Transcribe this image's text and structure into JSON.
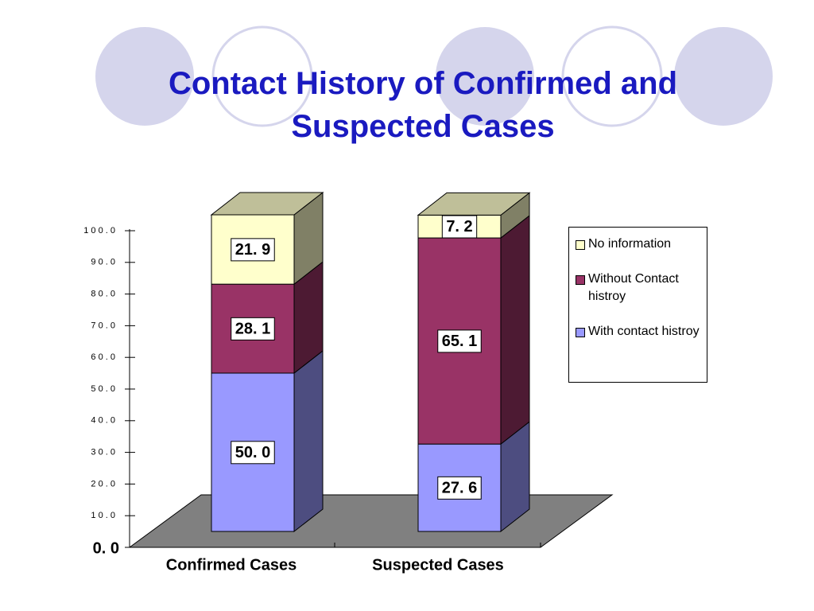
{
  "chart_data": {
    "type": "stacked-bar-3d",
    "title": "Contact History of Confirmed and Suspected Cases",
    "categories": [
      "Confirmed Cases",
      "Suspected Cases"
    ],
    "series": [
      {
        "name": "With contact histroy",
        "color": "#9999ff",
        "values": [
          50.0,
          27.6
        ],
        "value_labels": [
          "50. 0",
          "27. 6"
        ]
      },
      {
        "name": "Without Contact histroy",
        "color": "#993366",
        "values": [
          28.1,
          65.1
        ],
        "value_labels": [
          "28. 1",
          "65. 1"
        ]
      },
      {
        "name": "No information",
        "color": "#ffffcc",
        "values": [
          21.9,
          7.2
        ],
        "value_labels": [
          "21. 9",
          "7. 2"
        ]
      }
    ],
    "ylim": [
      0,
      100
    ],
    "yticks": [
      {
        "value": 0,
        "label": "0. 0"
      },
      {
        "value": 10,
        "label": "1 0 . 0"
      },
      {
        "value": 20,
        "label": "2 0 . 0"
      },
      {
        "value": 30,
        "label": "3 0 . 0"
      },
      {
        "value": 40,
        "label": "4 0 . 0"
      },
      {
        "value": 50,
        "label": "5 0 . 0"
      },
      {
        "value": 60,
        "label": "6 0 . 0"
      },
      {
        "value": 70,
        "label": "7 0 . 0"
      },
      {
        "value": 80,
        "label": "8 0 . 0"
      },
      {
        "value": 90,
        "label": "9 0 . 0"
      },
      {
        "value": 100,
        "label": "1 0 0 . 0"
      }
    ],
    "legend": "right"
  }
}
